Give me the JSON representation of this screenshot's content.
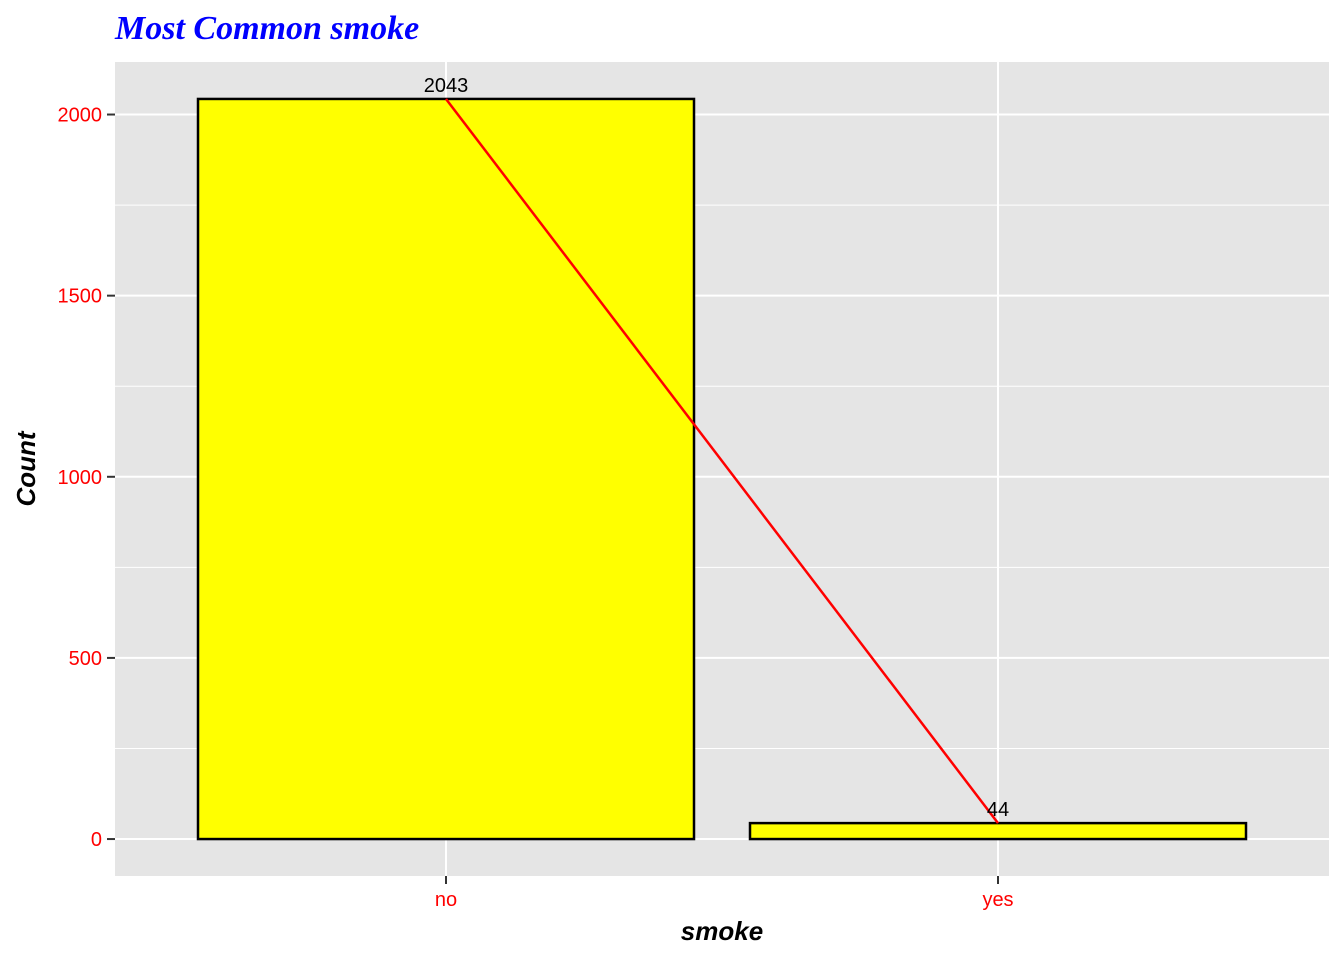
{
  "chart_data": {
    "type": "bar",
    "title": "Most Common smoke",
    "xlabel": "smoke",
    "ylabel": "Count",
    "categories": [
      "no",
      "yes"
    ],
    "values": [
      2043,
      44
    ],
    "data_labels": [
      "2043",
      "44"
    ],
    "yticks": [
      0,
      500,
      1000,
      1500,
      2000
    ],
    "ytick_labels": [
      "0",
      "500",
      "1000",
      "1500",
      "2000"
    ],
    "ylim": [
      -102,
      2145
    ],
    "grid": true,
    "legend": "none",
    "overlay": "line connecting bar tops",
    "colors": {
      "title": "#0000ff",
      "tick_labels": "#ff0000",
      "bar_fill": "#ffff00",
      "bar_outline": "#000000",
      "line": "#ff0000",
      "panel": "#e5e5e5",
      "grid": "#ffffff"
    }
  }
}
